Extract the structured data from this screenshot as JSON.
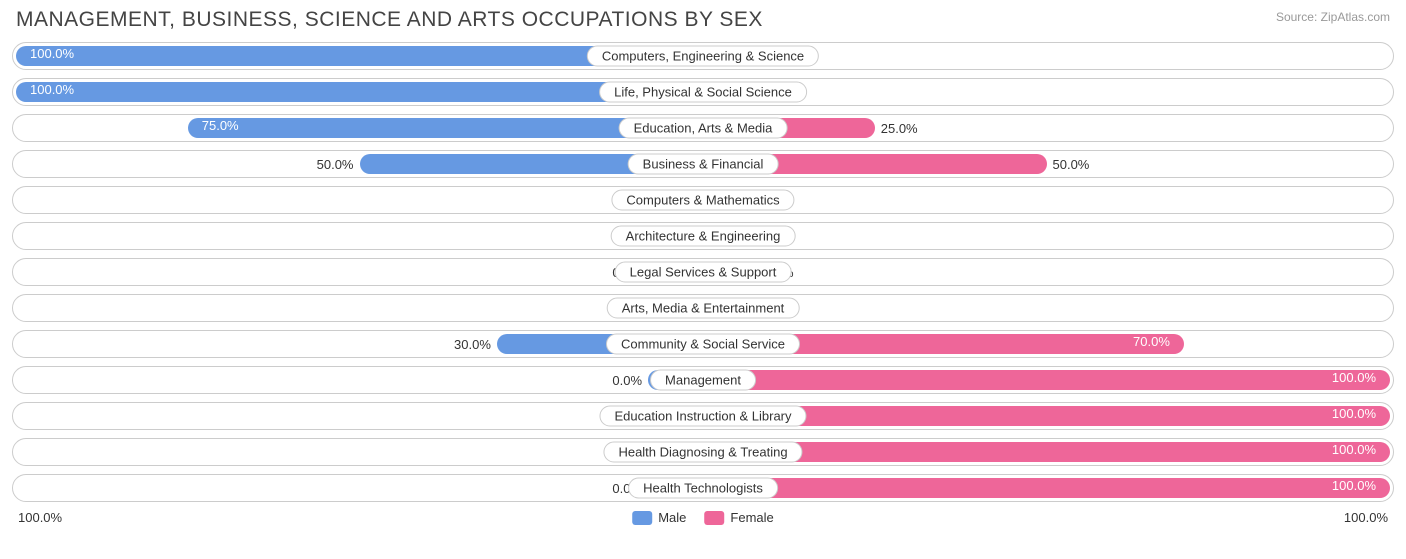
{
  "title": "MANAGEMENT, BUSINESS, SCIENCE AND ARTS OCCUPATIONS BY SEX",
  "source": "Source: ZipAtlas.com",
  "colors": {
    "male": "#6699e2",
    "female": "#ee6699",
    "border": "#cccccc",
    "text": "#333333",
    "title_text": "#444444",
    "source_text": "#999999",
    "background": "#ffffff"
  },
  "chart": {
    "type": "diverging-bar",
    "min_bar_pct": 8,
    "rows": [
      {
        "label": "Computers, Engineering & Science",
        "male": 100.0,
        "female": 0.0
      },
      {
        "label": "Life, Physical & Social Science",
        "male": 100.0,
        "female": 0.0
      },
      {
        "label": "Education, Arts & Media",
        "male": 75.0,
        "female": 25.0
      },
      {
        "label": "Business & Financial",
        "male": 50.0,
        "female": 50.0
      },
      {
        "label": "Computers & Mathematics",
        "male": 0.0,
        "female": 0.0
      },
      {
        "label": "Architecture & Engineering",
        "male": 0.0,
        "female": 0.0
      },
      {
        "label": "Legal Services & Support",
        "male": 0.0,
        "female": 0.0
      },
      {
        "label": "Arts, Media & Entertainment",
        "male": 0.0,
        "female": 0.0
      },
      {
        "label": "Community & Social Service",
        "male": 30.0,
        "female": 70.0
      },
      {
        "label": "Management",
        "male": 0.0,
        "female": 100.0
      },
      {
        "label": "Education Instruction & Library",
        "male": 0.0,
        "female": 100.0
      },
      {
        "label": "Health Diagnosing & Treating",
        "male": 0.0,
        "female": 100.0
      },
      {
        "label": "Health Technologists",
        "male": 0.0,
        "female": 100.0
      }
    ]
  },
  "axis": {
    "left": "100.0%",
    "right": "100.0%"
  },
  "legend": {
    "male": "Male",
    "female": "Female"
  }
}
